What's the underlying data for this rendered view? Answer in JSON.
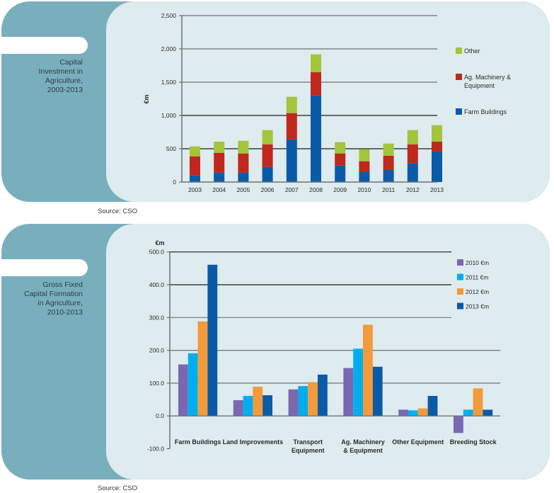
{
  "panels": [
    {
      "title_lines": [
        "Capital",
        "Investment in",
        "Agriculture,",
        "2003-2013"
      ],
      "source": "Source: CSO"
    },
    {
      "title_lines": [
        "Gross Fixed",
        "Capital Formation",
        "in Agriculture,",
        "2010-2013"
      ],
      "source": "Source: CSO"
    }
  ],
  "chart_data": [
    {
      "type": "bar",
      "stacked": true,
      "title": "Capital Investment in Agriculture, 2003-2013",
      "xlabel": "",
      "ylabel": "€m",
      "ylim": [
        0,
        2500
      ],
      "yticks": [
        0,
        500,
        1000,
        1500,
        2000,
        2500
      ],
      "ytick_labels": [
        "0",
        "500",
        "1,000",
        "1,500",
        "2,000",
        "2,500"
      ],
      "categories": [
        "2003",
        "2004",
        "2005",
        "2006",
        "2007",
        "2008",
        "2009",
        "2010",
        "2011",
        "2012",
        "2013"
      ],
      "series": [
        {
          "name": "Farm Buildings",
          "color": "#0b5aa8",
          "values": [
            99,
            141,
            141,
            227,
            641,
            1301,
            248,
            149,
            181,
            284,
            457
          ]
        },
        {
          "name": "Ag. Machinery & Equipment",
          "color": "#c0271d",
          "values": [
            287,
            298,
            288,
            340,
            394,
            348,
            181,
            163,
            213,
            283,
            149
          ]
        },
        {
          "name": "Other",
          "color": "#a4c43a",
          "values": [
            149,
            167,
            191,
            213,
            245,
            269,
            170,
            181,
            184,
            213,
            248
          ]
        }
      ],
      "legend_order": [
        "Other",
        "Ag. Machinery & Equipment",
        "Farm Buildings"
      ],
      "legend_lines": [
        [
          "Other"
        ],
        [
          "Ag. Machinery &",
          "Equipment"
        ],
        [
          "Farm Buildings"
        ]
      ],
      "legend": "right",
      "grid": true
    },
    {
      "type": "bar",
      "stacked": false,
      "title": "Gross Fixed Capital Formation in Agriculture, 2010-2013",
      "xlabel": "",
      "ylabel": "€m",
      "ylim": [
        -100,
        500
      ],
      "yticks": [
        -100,
        0,
        100,
        200,
        300,
        400,
        500
      ],
      "ytick_labels": [
        "-100.0",
        "0.0",
        "100.0",
        "200.0",
        "300.0",
        "400.0",
        "500.0"
      ],
      "categories": [
        "Farm Buildings",
        "Land Improvements",
        "Transport Equipment",
        "Ag. Machinery & Equipment",
        "Other Equipment",
        "Breeding Stock"
      ],
      "category_lines": [
        [
          "Farm Buildings"
        ],
        [
          "Land Improvements"
        ],
        [
          "Transport",
          "Equipment"
        ],
        [
          "Ag. Machinery",
          "& Equipment"
        ],
        [
          "Other Equipment"
        ],
        [
          "Breeding Stock"
        ]
      ],
      "series": [
        {
          "name": "2010 €m",
          "color": "#7a68b0",
          "values": [
            157,
            48,
            81,
            146,
            19,
            -52
          ]
        },
        {
          "name": "2011 €m",
          "color": "#00aeef",
          "values": [
            191,
            61,
            91,
            205,
            17,
            19
          ]
        },
        {
          "name": "2012 €m",
          "color": "#f39a3a",
          "values": [
            288,
            89,
            103,
            278,
            23,
            84
          ]
        },
        {
          "name": "2013 €m",
          "color": "#0b5aa8",
          "values": [
            461,
            63,
            126,
            150,
            61,
            19
          ]
        }
      ],
      "legend": "right",
      "grid": true
    }
  ]
}
